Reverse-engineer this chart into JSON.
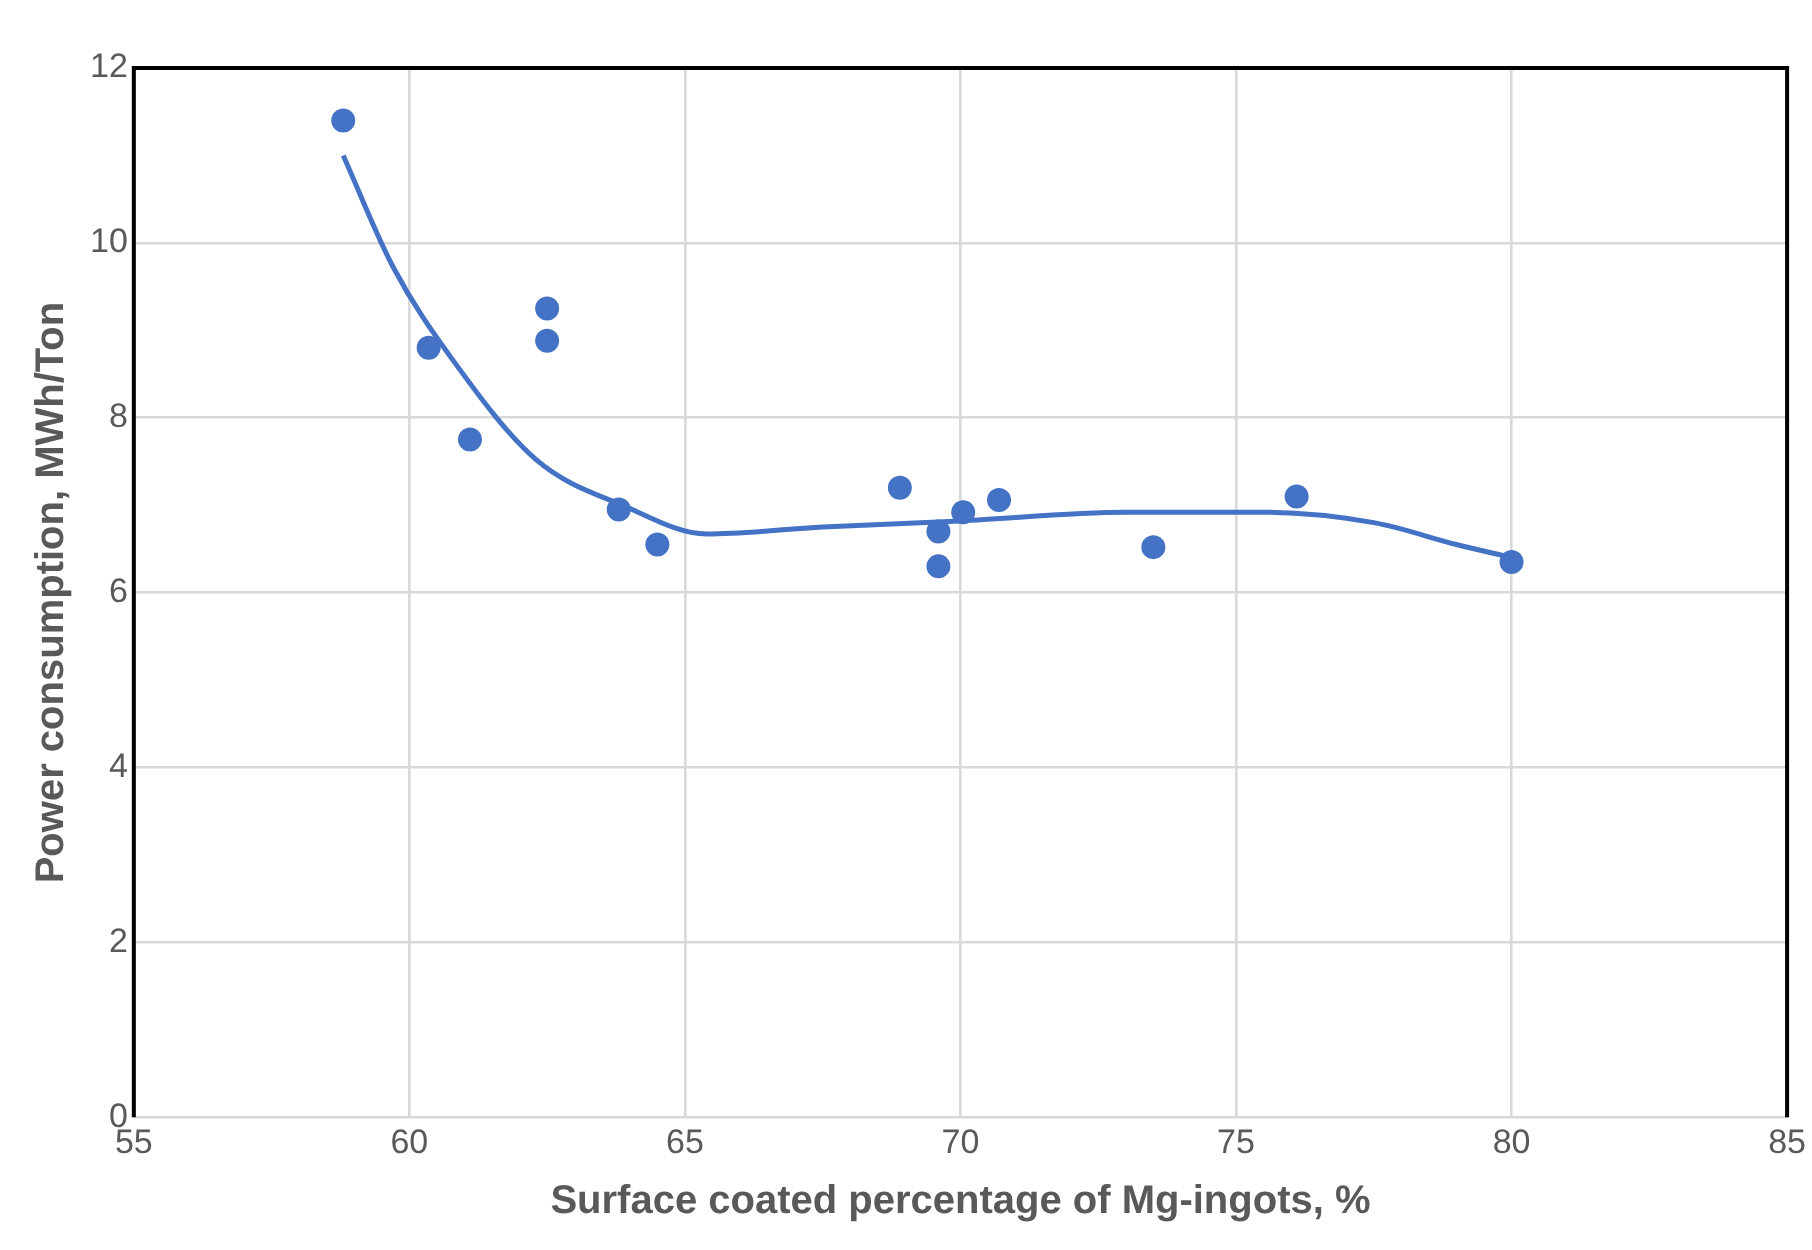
{
  "chart_data": {
    "type": "scatter",
    "xlabel": "Surface coated percentage of Mg-ingots, %",
    "ylabel": "Power consumption, MWh/Ton",
    "xlim": [
      55,
      85
    ],
    "xticks": [
      55,
      60,
      65,
      70,
      75,
      80,
      85
    ],
    "ylim": [
      0,
      12
    ],
    "yticks": [
      0,
      2,
      4,
      6,
      8,
      10,
      12
    ],
    "grid": true,
    "legend": false,
    "marker": "circle",
    "series": [
      {
        "type": "scatter",
        "color": "#4472c4",
        "x": [
          58.8,
          60.35,
          61.1,
          62.5,
          62.5,
          63.8,
          64.5,
          68.9,
          69.6,
          69.6,
          70.05,
          70.7,
          73.5,
          76.1,
          80.0
        ],
        "values": [
          11.4,
          8.8,
          7.75,
          9.25,
          8.88,
          6.95,
          6.55,
          7.2,
          6.7,
          6.3,
          6.92,
          7.06,
          6.52,
          7.1,
          6.35
        ]
      },
      {
        "type": "line",
        "color": "#4472c4",
        "marker": "none",
        "x": [
          58.8,
          59.7,
          60.8,
          62.3,
          63.9,
          65.4,
          67.5,
          70,
          73,
          75.5,
          77.5,
          79,
          80
        ],
        "values": [
          11.0,
          9.73,
          8.65,
          7.52,
          6.99,
          6.67,
          6.75,
          6.82,
          6.92,
          6.92,
          6.8,
          6.55,
          6.4
        ]
      }
    ]
  }
}
